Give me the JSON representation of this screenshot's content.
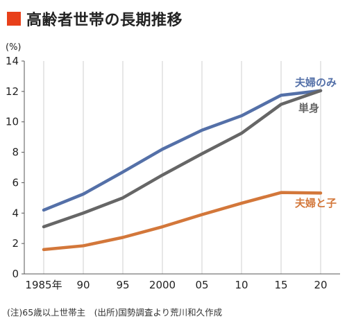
{
  "header": {
    "title": "高齢者世帯の長期推移",
    "accent_color": "#e8401a"
  },
  "footer": {
    "note": "(注)65歳以上世帯主　(出所)国勢調査より荒川和久作成"
  },
  "chart_data": {
    "type": "line",
    "title": "高齢者世帯の長期推移",
    "ylabel": "(%)",
    "xlabel": "",
    "ylim": [
      0,
      14
    ],
    "yticks": [
      0,
      2,
      4,
      6,
      8,
      10,
      12,
      14
    ],
    "x": [
      1985,
      1990,
      1995,
      2000,
      2005,
      2010,
      2015,
      2020
    ],
    "x_tick_labels": [
      "1985年",
      "90",
      "95",
      "2000",
      "05",
      "10",
      "15",
      "20"
    ],
    "grid": "vertical",
    "series": [
      {
        "name": "夫婦のみ",
        "color": "#5470a8",
        "values": [
          4.2,
          5.25,
          6.7,
          8.2,
          9.45,
          10.4,
          11.75,
          12.05
        ]
      },
      {
        "name": "単身",
        "color": "#666666",
        "values": [
          3.1,
          4.0,
          5.0,
          6.5,
          7.9,
          9.25,
          11.15,
          12.05
        ]
      },
      {
        "name": "夫婦と子",
        "color": "#d3773a",
        "values": [
          1.6,
          1.85,
          2.4,
          3.1,
          3.9,
          4.65,
          5.35,
          5.32
        ]
      }
    ]
  }
}
